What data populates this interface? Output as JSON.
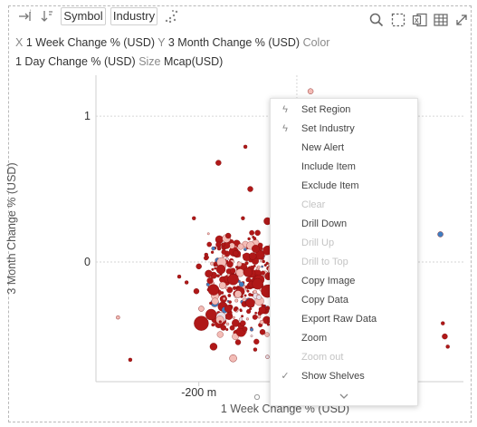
{
  "toolbar": {
    "symbol_label": "Symbol",
    "industry_label": "Industry"
  },
  "shelves": {
    "x_label": "X",
    "x_value": "1 Week Change % (USD)",
    "y_label": "Y",
    "y_value": "3 Month Change % (USD)",
    "color_label": "Color",
    "color_value": "1 Day Change % (USD)",
    "size_label": "Size",
    "size_value": "Mcap(USD)"
  },
  "colors": {
    "negative": "#b01818",
    "light_negative": "#f3bcb6",
    "positive": "#3f7dc0",
    "neutral": "#e8e0e8"
  },
  "chart_data": {
    "type": "scatter",
    "xlabel": "1 Week Change % (USD)",
    "ylabel": "3 Month Change % (USD)",
    "x_ticks": [
      {
        "value": -200,
        "label": "-200 m"
      }
    ],
    "y_ticks": [
      {
        "value": 0,
        "label": "0"
      },
      {
        "value": 1,
        "label": "1"
      }
    ],
    "xlim": [
      -410,
      340
    ],
    "ylim": [
      -0.82,
      1.28
    ],
    "points": [
      {
        "x": 28,
        "y": 1.17,
        "size": 3,
        "color": "light"
      },
      {
        "x": -5,
        "y": 0.86,
        "size": 2,
        "color": "neg"
      },
      {
        "x": -160,
        "y": 0.68,
        "size": 3,
        "color": "neg"
      },
      {
        "x": -105,
        "y": 0.79,
        "size": 2,
        "color": "neg"
      },
      {
        "x": -95,
        "y": 0.5,
        "size": 3,
        "color": "neg"
      },
      {
        "x": -40,
        "y": 0.42,
        "size": 3,
        "color": "neg"
      },
      {
        "x": -5,
        "y": 0.4,
        "size": 4,
        "color": "pos"
      },
      {
        "x": 15,
        "y": 0.33,
        "size": 5,
        "color": "light"
      },
      {
        "x": -60,
        "y": 0.28,
        "size": 4,
        "color": "neg"
      },
      {
        "x": -20,
        "y": 0.22,
        "size": 4,
        "color": "neg"
      },
      {
        "x": -150,
        "y": 0.12,
        "size": 2,
        "color": "neg"
      },
      {
        "x": -210,
        "y": 0.3,
        "size": 2,
        "color": "neg"
      },
      {
        "x": -125,
        "y": 0.06,
        "size": 3,
        "color": "neg"
      },
      {
        "x": -90,
        "y": 0.04,
        "size": 4,
        "color": "neg"
      },
      {
        "x": -60,
        "y": 0.08,
        "size": 5,
        "color": "neg"
      },
      {
        "x": -30,
        "y": 0.02,
        "size": 4,
        "color": "pos"
      },
      {
        "x": 0,
        "y": 0.1,
        "size": 4,
        "color": "neg"
      },
      {
        "x": 10,
        "y": -0.02,
        "size": 5,
        "color": "neg"
      },
      {
        "x": -10,
        "y": -0.1,
        "size": 6,
        "color": "pos"
      },
      {
        "x": -200,
        "y": -0.03,
        "size": 3,
        "color": "neg"
      },
      {
        "x": -180,
        "y": -0.08,
        "size": 4,
        "color": "neg"
      },
      {
        "x": -155,
        "y": -0.05,
        "size": 5,
        "color": "neg"
      },
      {
        "x": -130,
        "y": -0.12,
        "size": 6,
        "color": "neg"
      },
      {
        "x": -100,
        "y": -0.07,
        "size": 5,
        "color": "neg"
      },
      {
        "x": -80,
        "y": -0.15,
        "size": 6,
        "color": "neg"
      },
      {
        "x": -50,
        "y": -0.05,
        "size": 5,
        "color": "light"
      },
      {
        "x": -35,
        "y": -0.18,
        "size": 4,
        "color": "neg"
      },
      {
        "x": -15,
        "y": -0.22,
        "size": 5,
        "color": "neg"
      },
      {
        "x": 5,
        "y": -0.3,
        "size": 4,
        "color": "pos"
      },
      {
        "x": -120,
        "y": -0.22,
        "size": 4,
        "color": "light"
      },
      {
        "x": -170,
        "y": -0.19,
        "size": 6,
        "color": "neg"
      },
      {
        "x": -205,
        "y": -0.2,
        "size": 3,
        "color": "neg"
      },
      {
        "x": -225,
        "y": -0.14,
        "size": 2,
        "color": "neg"
      },
      {
        "x": -95,
        "y": -0.28,
        "size": 5,
        "color": "neg"
      },
      {
        "x": -70,
        "y": -0.33,
        "size": 4,
        "color": "neg"
      },
      {
        "x": -40,
        "y": -0.35,
        "size": 4,
        "color": "neg"
      },
      {
        "x": -140,
        "y": -0.32,
        "size": 4,
        "color": "neg"
      },
      {
        "x": -175,
        "y": -0.36,
        "size": 6,
        "color": "neg"
      },
      {
        "x": -195,
        "y": -0.32,
        "size": 3,
        "color": "light"
      },
      {
        "x": -195,
        "y": -0.42,
        "size": 8,
        "color": "neg"
      },
      {
        "x": -150,
        "y": -0.45,
        "size": 3,
        "color": "neg"
      },
      {
        "x": -110,
        "y": -0.42,
        "size": 3,
        "color": "neg"
      },
      {
        "x": -70,
        "y": -0.48,
        "size": 3,
        "color": "neg"
      },
      {
        "x": -30,
        "y": -0.45,
        "size": 3,
        "color": "neg"
      },
      {
        "x": -120,
        "y": -0.55,
        "size": 3,
        "color": "neg"
      },
      {
        "x": -170,
        "y": -0.58,
        "size": 4,
        "color": "neg"
      },
      {
        "x": -85,
        "y": -0.6,
        "size": 2,
        "color": "neg"
      },
      {
        "x": -130,
        "y": -0.66,
        "size": 4,
        "color": "light"
      },
      {
        "x": -40,
        "y": -0.55,
        "size": 2,
        "color": "neg"
      },
      {
        "x": -10,
        "y": -0.52,
        "size": 3,
        "color": "neg"
      },
      {
        "x": -60,
        "y": -0.2,
        "size": 7,
        "color": "neg"
      },
      {
        "x": -25,
        "y": -0.08,
        "size": 7,
        "color": "neg"
      },
      {
        "x": -140,
        "y": 0.18,
        "size": 3,
        "color": "neg"
      },
      {
        "x": -80,
        "y": 0.2,
        "size": 3,
        "color": "neg"
      },
      {
        "x": -45,
        "y": 0.15,
        "size": 3,
        "color": "light"
      },
      {
        "x": -110,
        "y": 0.3,
        "size": 2,
        "color": "neg"
      },
      {
        "x": -185,
        "y": 0.05,
        "size": 2,
        "color": "neg"
      },
      {
        "x": -240,
        "y": -0.1,
        "size": 2,
        "color": "neg"
      },
      {
        "x": -365,
        "y": -0.38,
        "size": 2,
        "color": "light"
      },
      {
        "x": -340,
        "y": -0.67,
        "size": 2,
        "color": "neg"
      },
      {
        "x": 293,
        "y": 0.19,
        "size": 3,
        "color": "pos"
      },
      {
        "x": 298,
        "y": -0.42,
        "size": 2,
        "color": "neg"
      },
      {
        "x": 302,
        "y": -0.51,
        "size": 3,
        "color": "neg"
      },
      {
        "x": 308,
        "y": -0.58,
        "size": 2,
        "color": "neg"
      },
      {
        "x": 0,
        "y": -0.58,
        "size": 2,
        "color": "neutral"
      },
      {
        "x": -60,
        "y": -0.65,
        "size": 2,
        "color": "neutral"
      }
    ]
  },
  "context_menu": {
    "items": [
      {
        "label": "Set Region",
        "icon": "lightning-icon",
        "disabled": false
      },
      {
        "label": "Set Industry",
        "icon": "lightning-icon",
        "disabled": false
      },
      {
        "label": "New Alert",
        "icon": "",
        "disabled": false
      },
      {
        "label": "Include Item",
        "icon": "",
        "disabled": false
      },
      {
        "label": "Exclude Item",
        "icon": "",
        "disabled": false
      },
      {
        "label": "Clear",
        "icon": "",
        "disabled": true
      },
      {
        "label": "Drill Down",
        "icon": "",
        "disabled": false
      },
      {
        "label": "Drill Up",
        "icon": "",
        "disabled": true
      },
      {
        "label": "Drill to Top",
        "icon": "",
        "disabled": true
      },
      {
        "label": "Copy Image",
        "icon": "",
        "disabled": false
      },
      {
        "label": "Copy Data",
        "icon": "",
        "disabled": false
      },
      {
        "label": "Export Raw Data",
        "icon": "",
        "disabled": false
      },
      {
        "label": "Zoom",
        "icon": "",
        "disabled": false
      },
      {
        "label": "Zoom out",
        "icon": "",
        "disabled": true
      },
      {
        "label": "Show Shelves",
        "icon": "check-icon",
        "disabled": false
      }
    ]
  }
}
